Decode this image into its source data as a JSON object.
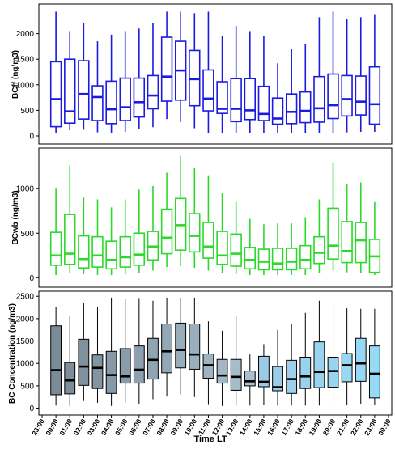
{
  "x_ticks": [
    "23:00",
    "00:00",
    "01:00",
    "02:00",
    "03:00",
    "04:00",
    "05:00",
    "06:00",
    "07:00",
    "08:00",
    "09:00",
    "10:00",
    "11:00",
    "12:00",
    "13:00",
    "14:00",
    "15:00",
    "16:00",
    "17:00",
    "18:00",
    "19:00",
    "20:00",
    "21:00",
    "22:00",
    "23:00",
    "00:00"
  ],
  "xlabel": "Time LT",
  "chart_data": [
    {
      "type": "box",
      "ylabel": "BCff (ng/m3)",
      "ylim": [
        0,
        2500
      ],
      "yticks": [
        0,
        500,
        1000,
        1500,
        2000
      ],
      "color": "#1a1ae0",
      "grid": false,
      "x": [
        "00:00",
        "01:00",
        "02:00",
        "03:00",
        "04:00",
        "05:00",
        "06:00",
        "07:00",
        "08:00",
        "09:00",
        "10:00",
        "11:00",
        "12:00",
        "13:00",
        "14:00",
        "15:00",
        "16:00",
        "17:00",
        "18:00",
        "19:00",
        "20:00",
        "21:00",
        "22:00",
        "23:00"
      ],
      "boxes": [
        {
          "min": 60,
          "q1": 180,
          "median": 720,
          "q3": 1450,
          "max": 2430
        },
        {
          "min": 110,
          "q1": 250,
          "median": 480,
          "q3": 1500,
          "max": 2050
        },
        {
          "min": 120,
          "q1": 330,
          "median": 820,
          "q3": 1470,
          "max": 2200
        },
        {
          "min": 70,
          "q1": 300,
          "median": 760,
          "q3": 980,
          "max": 1850
        },
        {
          "min": 50,
          "q1": 240,
          "median": 520,
          "q3": 1070,
          "max": 1980
        },
        {
          "min": 80,
          "q1": 300,
          "median": 560,
          "q3": 1130,
          "max": 2050
        },
        {
          "min": 130,
          "q1": 370,
          "median": 660,
          "q3": 1130,
          "max": 2100
        },
        {
          "min": 170,
          "q1": 530,
          "median": 790,
          "q3": 1180,
          "max": 2200
        },
        {
          "min": 330,
          "q1": 680,
          "median": 1160,
          "q3": 1930,
          "max": 2430
        },
        {
          "min": 270,
          "q1": 700,
          "median": 1280,
          "q3": 1850,
          "max": 2430
        },
        {
          "min": 150,
          "q1": 590,
          "median": 1110,
          "q3": 1670,
          "max": 2400
        },
        {
          "min": 60,
          "q1": 490,
          "median": 730,
          "q3": 1290,
          "max": 2430
        },
        {
          "min": 60,
          "q1": 440,
          "median": 530,
          "q3": 1060,
          "max": 1950
        },
        {
          "min": 60,
          "q1": 280,
          "median": 530,
          "q3": 1120,
          "max": 2150
        },
        {
          "min": 60,
          "q1": 320,
          "median": 500,
          "q3": 1120,
          "max": 2050
        },
        {
          "min": 60,
          "q1": 300,
          "median": 430,
          "q3": 970,
          "max": 1950
        },
        {
          "min": 60,
          "q1": 230,
          "median": 340,
          "q3": 740,
          "max": 1420
        },
        {
          "min": 60,
          "q1": 240,
          "median": 470,
          "q3": 820,
          "max": 1700
        },
        {
          "min": 60,
          "q1": 260,
          "median": 490,
          "q3": 860,
          "max": 1800
        },
        {
          "min": 60,
          "q1": 270,
          "median": 540,
          "q3": 1160,
          "max": 2320
        },
        {
          "min": 60,
          "q1": 340,
          "median": 600,
          "q3": 1210,
          "max": 2430
        },
        {
          "min": 70,
          "q1": 390,
          "median": 720,
          "q3": 1180,
          "max": 2290
        },
        {
          "min": 80,
          "q1": 410,
          "median": 670,
          "q3": 1170,
          "max": 2320
        },
        {
          "min": 80,
          "q1": 230,
          "median": 620,
          "q3": 1350,
          "max": 2380
        }
      ]
    },
    {
      "type": "box",
      "ylabel": "BCwb (ng/m3)",
      "ylim": [
        -70,
        1420
      ],
      "yticks": [
        0,
        500,
        1000
      ],
      "color": "#2bd92b",
      "grid": false,
      "x": [
        "00:00",
        "01:00",
        "02:00",
        "03:00",
        "04:00",
        "05:00",
        "06:00",
        "07:00",
        "08:00",
        "09:00",
        "10:00",
        "11:00",
        "12:00",
        "13:00",
        "14:00",
        "15:00",
        "16:00",
        "17:00",
        "18:00",
        "19:00",
        "20:00",
        "21:00",
        "22:00",
        "23:00"
      ],
      "boxes": [
        {
          "min": 30,
          "q1": 140,
          "median": 250,
          "q3": 510,
          "max": 1000
        },
        {
          "min": 50,
          "q1": 150,
          "median": 270,
          "q3": 710,
          "max": 1260
        },
        {
          "min": 40,
          "q1": 110,
          "median": 210,
          "q3": 470,
          "max": 900
        },
        {
          "min": 30,
          "q1": 120,
          "median": 250,
          "q3": 460,
          "max": 880
        },
        {
          "min": 30,
          "q1": 100,
          "median": 200,
          "q3": 410,
          "max": 790
        },
        {
          "min": 40,
          "q1": 120,
          "median": 230,
          "q3": 460,
          "max": 880
        },
        {
          "min": 50,
          "q1": 140,
          "median": 260,
          "q3": 500,
          "max": 990
        },
        {
          "min": 80,
          "q1": 200,
          "median": 350,
          "q3": 520,
          "max": 1030
        },
        {
          "min": 120,
          "q1": 270,
          "median": 450,
          "q3": 770,
          "max": 1180
        },
        {
          "min": 130,
          "q1": 310,
          "median": 590,
          "q3": 890,
          "max": 1370
        },
        {
          "min": 110,
          "q1": 290,
          "median": 470,
          "q3": 720,
          "max": 1230
        },
        {
          "min": 80,
          "q1": 220,
          "median": 350,
          "q3": 620,
          "max": 1150
        },
        {
          "min": 50,
          "q1": 150,
          "median": 250,
          "q3": 520,
          "max": 950
        },
        {
          "min": 40,
          "q1": 130,
          "median": 270,
          "q3": 490,
          "max": 850
        },
        {
          "min": 30,
          "q1": 100,
          "median": 200,
          "q3": 340,
          "max": 660
        },
        {
          "min": 30,
          "q1": 90,
          "median": 180,
          "q3": 320,
          "max": 600
        },
        {
          "min": 30,
          "q1": 90,
          "median": 160,
          "q3": 330,
          "max": 610
        },
        {
          "min": 30,
          "q1": 90,
          "median": 180,
          "q3": 330,
          "max": 610
        },
        {
          "min": 30,
          "q1": 100,
          "median": 200,
          "q3": 360,
          "max": 680
        },
        {
          "min": 50,
          "q1": 160,
          "median": 280,
          "q3": 460,
          "max": 880
        },
        {
          "min": 80,
          "q1": 210,
          "median": 360,
          "q3": 780,
          "max": 1290
        },
        {
          "min": 60,
          "q1": 170,
          "median": 300,
          "q3": 630,
          "max": 1050
        },
        {
          "min": 50,
          "q1": 170,
          "median": 420,
          "q3": 620,
          "max": 1070
        },
        {
          "min": 30,
          "q1": 60,
          "median": 240,
          "q3": 430,
          "max": 850
        }
      ]
    },
    {
      "type": "box",
      "ylabel": "BC Concentration (ng/m3)",
      "ylim": [
        -80,
        2540
      ],
      "yticks": [
        0,
        500,
        1000,
        1500,
        2000,
        2500
      ],
      "grid": false,
      "x": [
        "00:00",
        "01:00",
        "02:00",
        "03:00",
        "04:00",
        "05:00",
        "06:00",
        "07:00",
        "08:00",
        "09:00",
        "10:00",
        "11:00",
        "12:00",
        "13:00",
        "14:00",
        "15:00",
        "16:00",
        "17:00",
        "18:00",
        "19:00",
        "20:00",
        "21:00",
        "22:00",
        "23:00"
      ],
      "colors": [
        "#7a8b98",
        "#7d8d9b",
        "#80919e",
        "#8495a2",
        "#8798a6",
        "#8a9caa",
        "#8ea0ae",
        "#91a4b2",
        "#94a8b6",
        "#98acba",
        "#9bb0be",
        "#9eb4c2",
        "#a2b8c6",
        "#a5bccb",
        "#a8c0cf",
        "#9ccbe6",
        "#9ccde8",
        "#9bcfea",
        "#9ad1ec",
        "#99d3ee",
        "#98d5f0",
        "#97d7f2",
        "#96d9f4",
        "#96dbf6"
      ],
      "boxes": [
        {
          "min": 60,
          "q1": 300,
          "median": 850,
          "q3": 1840,
          "max": 2270
        },
        {
          "min": 50,
          "q1": 320,
          "median": 620,
          "q3": 1020,
          "max": 2050
        },
        {
          "min": 160,
          "q1": 510,
          "median": 930,
          "q3": 1540,
          "max": 2360
        },
        {
          "min": 120,
          "q1": 440,
          "median": 900,
          "q3": 1190,
          "max": 2260
        },
        {
          "min": 50,
          "q1": 330,
          "median": 740,
          "q3": 1270,
          "max": 2470
        },
        {
          "min": 130,
          "q1": 560,
          "median": 710,
          "q3": 1330,
          "max": 2450
        },
        {
          "min": 100,
          "q1": 560,
          "median": 860,
          "q3": 1390,
          "max": 2460
        },
        {
          "min": 200,
          "q1": 650,
          "median": 1080,
          "q3": 1560,
          "max": 2400
        },
        {
          "min": 260,
          "q1": 790,
          "median": 1270,
          "q3": 1880,
          "max": 2470
        },
        {
          "min": 310,
          "q1": 900,
          "median": 1300,
          "q3": 1900,
          "max": 2470
        },
        {
          "min": 250,
          "q1": 870,
          "median": 1200,
          "q3": 1880,
          "max": 2470
        },
        {
          "min": 90,
          "q1": 670,
          "median": 960,
          "q3": 1210,
          "max": 1940
        },
        {
          "min": 50,
          "q1": 560,
          "median": 730,
          "q3": 1090,
          "max": 1730
        },
        {
          "min": 60,
          "q1": 400,
          "median": 700,
          "q3": 1090,
          "max": 2070
        },
        {
          "min": 60,
          "q1": 500,
          "median": 600,
          "q3": 830,
          "max": 1200
        },
        {
          "min": 70,
          "q1": 480,
          "median": 590,
          "q3": 1160,
          "max": 1430
        },
        {
          "min": 60,
          "q1": 390,
          "median": 470,
          "q3": 930,
          "max": 1750
        },
        {
          "min": 60,
          "q1": 330,
          "median": 650,
          "q3": 1070,
          "max": 1880
        },
        {
          "min": 60,
          "q1": 440,
          "median": 710,
          "q3": 1140,
          "max": 2130
        },
        {
          "min": 60,
          "q1": 460,
          "median": 810,
          "q3": 1480,
          "max": 2400
        },
        {
          "min": 70,
          "q1": 470,
          "median": 830,
          "q3": 1140,
          "max": 2340
        },
        {
          "min": 80,
          "q1": 590,
          "median": 960,
          "q3": 1220,
          "max": 2230
        },
        {
          "min": 100,
          "q1": 600,
          "median": 1000,
          "q3": 1560,
          "max": 2220
        },
        {
          "min": 80,
          "q1": 230,
          "median": 770,
          "q3": 1390,
          "max": 2220
        }
      ]
    }
  ]
}
